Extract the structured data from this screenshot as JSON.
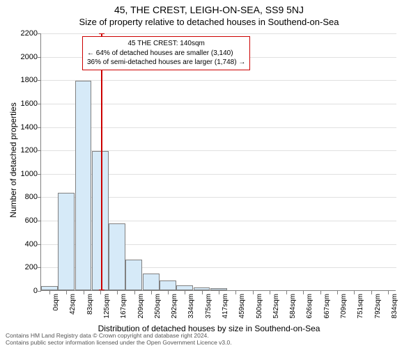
{
  "title": {
    "main": "45, THE CREST, LEIGH-ON-SEA, SS9 5NJ",
    "sub": "Size of property relative to detached houses in Southend-on-Sea"
  },
  "y_axis": {
    "label": "Number of detached properties",
    "min": 0,
    "max": 2200,
    "ticks": [
      0,
      200,
      400,
      600,
      800,
      1000,
      1200,
      1400,
      1600,
      1800,
      2000,
      2200
    ]
  },
  "x_axis": {
    "label": "Distribution of detached houses by size in Southend-on-Sea",
    "categories": [
      "0sqm",
      "42sqm",
      "83sqm",
      "125sqm",
      "167sqm",
      "209sqm",
      "250sqm",
      "292sqm",
      "334sqm",
      "375sqm",
      "417sqm",
      "459sqm",
      "500sqm",
      "542sqm",
      "584sqm",
      "626sqm",
      "667sqm",
      "709sqm",
      "751sqm",
      "792sqm",
      "834sqm"
    ]
  },
  "bars": {
    "values": [
      35,
      830,
      1790,
      1190,
      570,
      260,
      140,
      85,
      40,
      25,
      15,
      0,
      0,
      0,
      0,
      0,
      0,
      0,
      0,
      0,
      0
    ],
    "fill_color": "#d6eaf8",
    "border_color": "#808080"
  },
  "reference": {
    "value_sqm": 140,
    "line_color": "#cc0000",
    "box": {
      "line1": "45 THE CREST: 140sqm",
      "line2": "← 64% of detached houses are smaller (3,140)",
      "line3": "36% of semi-detached houses are larger (1,748) →"
    }
  },
  "chart_style": {
    "background_color": "#ffffff",
    "grid_color": "#e0e0e0",
    "axis_color": "#808080",
    "title_fontsize": 14,
    "subtitle_fontsize": 13,
    "axis_label_fontsize": 12,
    "tick_fontsize": 11,
    "annotation_fontsize": 10
  },
  "footer": {
    "line1": "Contains HM Land Registry data © Crown copyright and database right 2024.",
    "line2": "Contains public sector information licensed under the Open Government Licence v3.0."
  }
}
